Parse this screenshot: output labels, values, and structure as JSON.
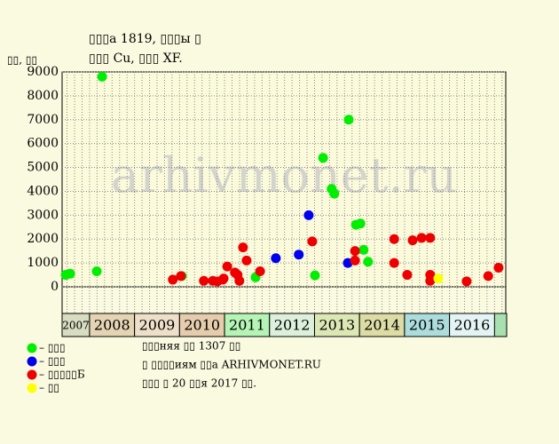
{
  "chart_data": {
    "type": "scatter",
    "title": "▯▯▯а 1819, ▯▯▯ы ▯",
    "subtitle": "▯▯▯ Cu, ▯▯▯ XF.",
    "y_label": "▯▯, ▯▯",
    "watermark": "arhivmonet.ru",
    "xlim": [
      2007.39,
      2017.25
    ],
    "xticks": [
      2007,
      2008,
      2009,
      2010,
      2011,
      2012,
      2013,
      2014,
      2015,
      2016
    ],
    "year_colors": [
      "#d8dcc0",
      "#e4d4b4",
      "#eee0c8",
      "#e4ccac",
      "#b4f4b4",
      "#dcf0dc",
      "#dce8b4",
      "#dcdca4",
      "#acdcdc",
      "#e4f4f4"
    ],
    "ylim": [
      0,
      9000
    ],
    "yticks": [
      0,
      1000,
      2000,
      3000,
      4000,
      5000,
      6000,
      7000,
      8000,
      9000
    ],
    "grid": true,
    "series": [
      {
        "name": "– ▯▯▯",
        "color": "#00ee00",
        "x": [
          2007.47,
          2007.57,
          2008.16,
          2008.28,
          2010.05,
          2011.69,
          2013.01,
          2013.19,
          2013.38,
          2013.44,
          2013.76,
          2013.92,
          2014.02,
          2014.09,
          2014.19
        ],
        "values": [
          500,
          550,
          650,
          8800,
          450,
          400,
          480,
          5400,
          4100,
          3900,
          7000,
          2600,
          2650,
          1550,
          1050
        ]
      },
      {
        "name": "– ▯▯▯",
        "color": "#0000ee",
        "x": [
          2012.14,
          2012.65,
          2012.87,
          2013.74
        ],
        "values": [
          1200,
          1350,
          3000,
          1000
        ]
      },
      {
        "name": "– ▯▯▯▯▯Б",
        "color": "#ee0000",
        "x": [
          2009.85,
          2010.03,
          2010.54,
          2010.74,
          2010.84,
          2010.96,
          2010.98,
          2011.06,
          2011.23,
          2011.29,
          2011.33,
          2011.41,
          2011.49,
          2011.79,
          2012.95,
          2013.9,
          2013.9,
          2014.77,
          2014.77,
          2015.06,
          2015.18,
          2015.38,
          2015.57,
          2015.57,
          2015.57,
          2016.38,
          2016.86,
          2017.09
        ],
        "values": [
          300,
          450,
          250,
          250,
          230,
          300,
          350,
          850,
          600,
          500,
          250,
          1650,
          1100,
          650,
          1900,
          1500,
          1100,
          2000,
          1000,
          500,
          1950,
          2050,
          2050,
          500,
          250,
          230,
          450,
          800
        ]
      },
      {
        "name": "– ▯▯",
        "color": "#ffff00",
        "x": [
          2015.75
        ],
        "values": [
          350
        ]
      }
    ],
    "info": [
      "▯▯▯няя ▯▯ 1307 ▯▯",
      "▯ ▯▯▯▯иям ▯▯а ARHIVMONET.RU",
      "▯▯▯ ▯ 20 ▯▯я 2017 ▯▯."
    ]
  }
}
